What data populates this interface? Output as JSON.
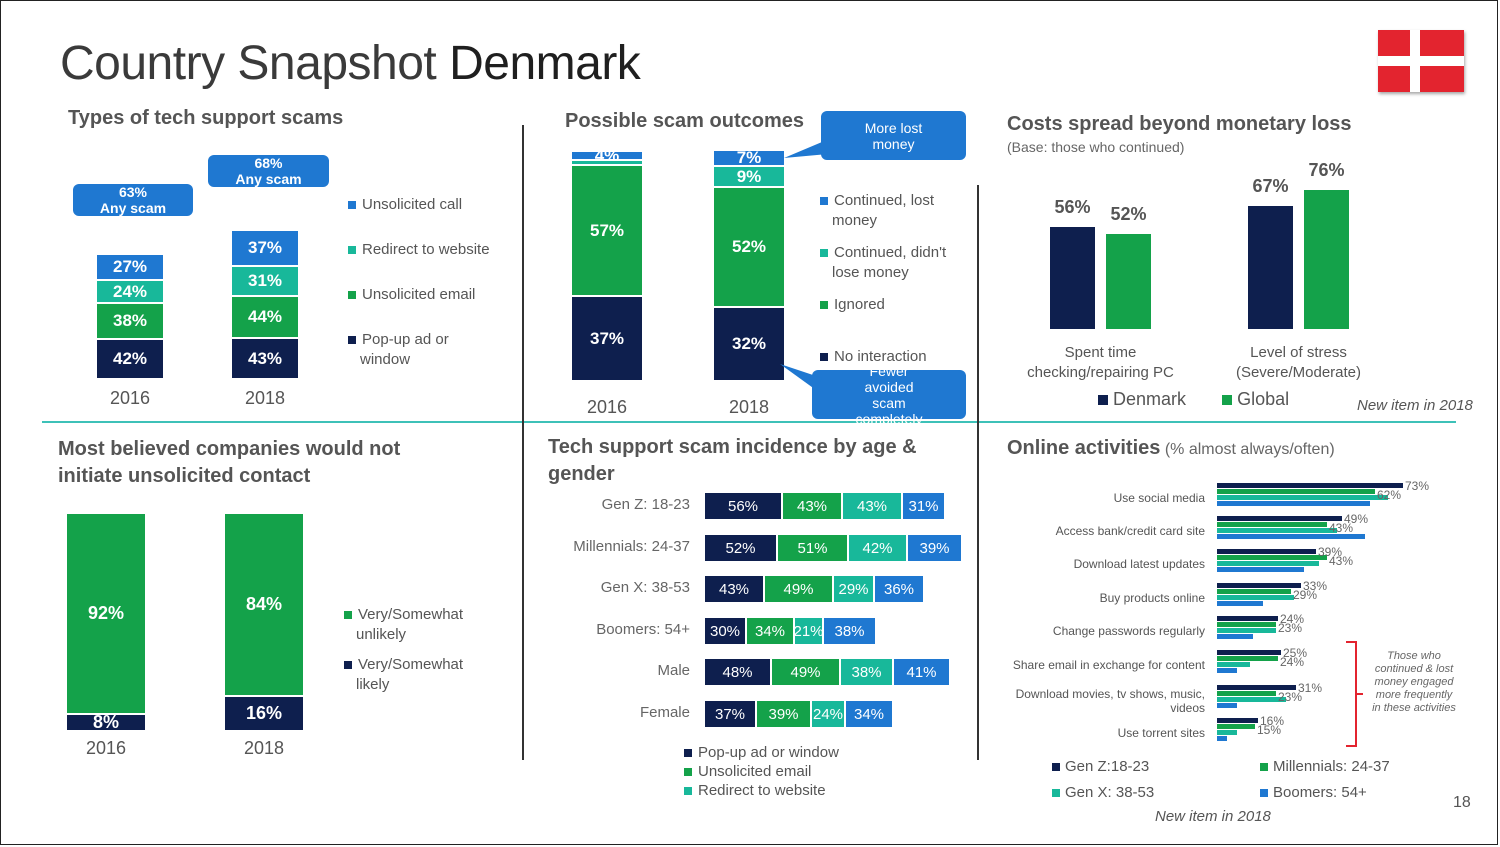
{
  "title": {
    "light": "Country Snapshot ",
    "bold": "Denmark"
  },
  "flag_label": "Denmark flag",
  "page_number": "18",
  "colors": {
    "navy": "#0e1f4e",
    "green": "#14a24a",
    "teal": "#18b89a",
    "blue": "#1f78d1",
    "divider": "#3dc1b8"
  },
  "types": {
    "heading": "Types of tech support scams",
    "legend": [
      "Unsolicited call",
      "Redirect to website",
      "Unsolicited email",
      "Pop-up ad or window"
    ],
    "callouts": [
      {
        "pct": "63%",
        "label": "Any scam"
      },
      {
        "pct": "68%",
        "label": "Any scam"
      }
    ]
  },
  "outcomes": {
    "heading": "Possible scam outcomes",
    "legend": [
      "Continued, lost money",
      "Continued, didn't lose money",
      "Ignored",
      "No interaction"
    ],
    "callout_top": "More lost money",
    "callout_bottom": "Fewer avoided scam completely"
  },
  "costs": {
    "heading": "Costs spread beyond monetary loss",
    "base": "(Base: those who continued)",
    "legend": [
      "Denmark",
      "Global"
    ],
    "note": "New item in 2018"
  },
  "believe": {
    "heading_line1": "Most believed companies would not",
    "heading_line2": "initiate unsolicited contact",
    "legend": [
      "Very/Somewhat unlikely",
      "Very/Somewhat likely"
    ]
  },
  "incidence": {
    "heading_line1": "Tech support scam incidence by age &",
    "heading_line2": "gender",
    "legend": [
      "Pop-up ad or window",
      "Unsolicited email",
      "Redirect to website"
    ]
  },
  "online": {
    "heading": "Online activities",
    "heading_sub": "(% almost always/often)",
    "legend": [
      "Gen Z:18-23",
      "Millennials: 24-37",
      "Gen X: 38-53",
      "Boomers: 54+"
    ],
    "note": "New item in 2018",
    "bracket_note": "Those who continued & lost money engaged more frequently in these activities"
  },
  "chart_data": [
    {
      "id": "types",
      "type": "bar",
      "title": "Types of tech support scams",
      "stacked": true,
      "categories": [
        "2016",
        "2018"
      ],
      "series": [
        {
          "name": "Pop-up ad or window",
          "values": [
            42,
            43
          ],
          "labels": [
            "42%",
            "43%"
          ]
        },
        {
          "name": "Unsolicited email",
          "values": [
            38,
            44
          ],
          "labels": [
            "38%",
            "44%"
          ]
        },
        {
          "name": "Redirect to website",
          "values": [
            24,
            31
          ],
          "labels": [
            "24%",
            "31%"
          ]
        },
        {
          "name": "Unsolicited call",
          "values": [
            27,
            37
          ],
          "labels": [
            "27%",
            "37%"
          ]
        }
      ]
    },
    {
      "id": "outcomes",
      "type": "bar",
      "title": "Possible scam outcomes",
      "stacked": true,
      "categories": [
        "2016",
        "2018"
      ],
      "series": [
        {
          "name": "No interaction",
          "values": [
            37,
            32
          ],
          "labels": [
            "37%",
            "32%"
          ]
        },
        {
          "name": "Ignored",
          "values": [
            57,
            52
          ],
          "labels": [
            "57%",
            "52%"
          ]
        },
        {
          "name": "Continued, didn't lose money",
          "values": [
            2,
            9
          ],
          "labels": [
            "",
            "9%"
          ]
        },
        {
          "name": "Continued, lost money",
          "values": [
            4,
            7
          ],
          "labels": [
            "4%",
            "7%"
          ]
        }
      ]
    },
    {
      "id": "costs",
      "type": "bar",
      "title": "Costs spread beyond monetary loss",
      "categories": [
        "Spent time checking/repairing PC",
        "Level of stress (Severe/Moderate)"
      ],
      "series": [
        {
          "name": "Denmark",
          "values": [
            56,
            67
          ],
          "labels": [
            "56%",
            "67%"
          ]
        },
        {
          "name": "Global",
          "values": [
            52,
            76
          ],
          "labels": [
            "52%",
            "76%"
          ]
        }
      ]
    },
    {
      "id": "believe",
      "type": "bar",
      "title": "Most believed companies would not initiate unsolicited contact",
      "stacked": true,
      "categories": [
        "2016",
        "2018"
      ],
      "series": [
        {
          "name": "Very/Somewhat likely",
          "values": [
            8,
            16
          ],
          "labels": [
            "8%",
            "16%"
          ]
        },
        {
          "name": "Very/Somewhat unlikely",
          "values": [
            92,
            84
          ],
          "labels": [
            "92%",
            "84%"
          ]
        }
      ]
    },
    {
      "id": "incidence",
      "type": "bar",
      "orientation": "horizontal",
      "stacked": true,
      "title": "Tech support scam incidence by age & gender",
      "categories": [
        "Gen Z: 18-23",
        "Millennials: 24-37",
        "Gen X: 38-53",
        "Boomers: 54+",
        "Male",
        "Female"
      ],
      "series": [
        {
          "name": "Pop-up ad or window",
          "values": [
            56,
            52,
            43,
            30,
            48,
            37
          ],
          "labels": [
            "56%",
            "52%",
            "43%",
            "30%",
            "48%",
            "37%"
          ]
        },
        {
          "name": "Unsolicited email",
          "values": [
            43,
            51,
            49,
            34,
            49,
            39
          ],
          "labels": [
            "43%",
            "51%",
            "49%",
            "34%",
            "49%",
            "39%"
          ]
        },
        {
          "name": "Redirect to website",
          "values": [
            43,
            42,
            29,
            21,
            38,
            24
          ],
          "labels": [
            "43%",
            "42%",
            "29%",
            "21%",
            "38%",
            "24%"
          ]
        },
        {
          "name": "Unsolicited call",
          "values": [
            31,
            39,
            36,
            38,
            41,
            34
          ],
          "labels": [
            "31%",
            "39%",
            "36%",
            "38%",
            "41%",
            "34%"
          ]
        }
      ]
    },
    {
      "id": "online",
      "type": "bar",
      "orientation": "horizontal",
      "title": "Online activities (% almost always/often)",
      "categories": [
        "Use social media",
        "Access bank/credit card site",
        "Download latest updates",
        "Buy products online",
        "Change passwords regularly",
        "Share email in exchange for content",
        "Download movies, tv shows, music, videos",
        "Use torrent sites"
      ],
      "labels": [
        [
          "73%",
          "62%"
        ],
        [
          "49%",
          "43%"
        ],
        [
          "39%",
          "43%"
        ],
        [
          "33%",
          "29%"
        ],
        [
          "24%",
          "23%"
        ],
        [
          "25%",
          "24%"
        ],
        [
          "31%",
          "23%"
        ],
        [
          "16%",
          "15%"
        ]
      ],
      "series": [
        {
          "name": "Gen Z:18-23",
          "values": [
            73,
            49,
            39,
            33,
            24,
            25,
            31,
            16
          ]
        },
        {
          "name": "Millennials: 24-37",
          "values": [
            62,
            43,
            43,
            29,
            23,
            24,
            23,
            15
          ]
        },
        {
          "name": "Gen X: 38-53",
          "values": [
            67,
            47,
            40,
            30,
            23,
            13,
            27,
            8
          ]
        },
        {
          "name": "Boomers: 54+",
          "values": [
            60,
            58,
            34,
            18,
            14,
            8,
            8,
            4
          ]
        }
      ]
    }
  ]
}
